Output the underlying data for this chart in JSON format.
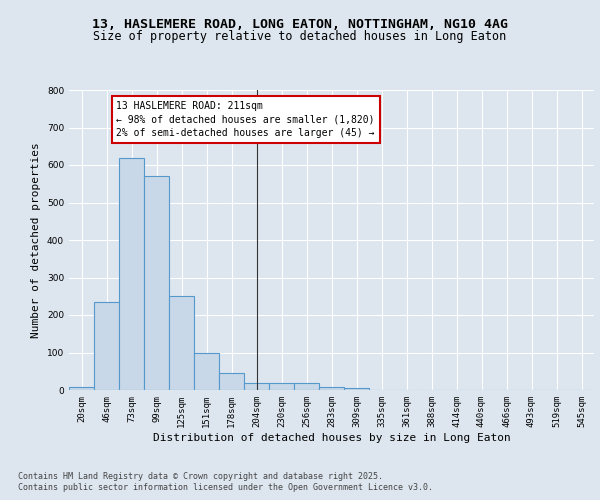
{
  "title_line1": "13, HASLEMERE ROAD, LONG EATON, NOTTINGHAM, NG10 4AG",
  "title_line2": "Size of property relative to detached houses in Long Eaton",
  "xlabel": "Distribution of detached houses by size in Long Eaton",
  "ylabel": "Number of detached properties",
  "bar_color": "#c8d8e8",
  "bar_edge_color": "#5599cc",
  "bar_edge_width": 0.8,
  "background_color": "#dde6ef",
  "axes_background": "#dde6ef",
  "grid_color": "#ffffff",
  "categories": [
    "20sqm",
    "46sqm",
    "73sqm",
    "99sqm",
    "125sqm",
    "151sqm",
    "178sqm",
    "204sqm",
    "230sqm",
    "256sqm",
    "283sqm",
    "309sqm",
    "335sqm",
    "361sqm",
    "388sqm",
    "414sqm",
    "440sqm",
    "466sqm",
    "493sqm",
    "519sqm",
    "545sqm"
  ],
  "bar_values": [
    8,
    235,
    620,
    570,
    250,
    98,
    45,
    20,
    20,
    18,
    8,
    5,
    0,
    0,
    0,
    0,
    0,
    0,
    0,
    0,
    0
  ],
  "vline_x": 7,
  "ylim": [
    0,
    800
  ],
  "yticks": [
    0,
    100,
    200,
    300,
    400,
    500,
    600,
    700,
    800
  ],
  "annotation_title": "13 HASLEMERE ROAD: 211sqm",
  "annotation_line1": "← 98% of detached houses are smaller (1,820)",
  "annotation_line2": "2% of semi-detached houses are larger (45) →",
  "annotation_box_color": "#ffffff",
  "annotation_border_color": "#cc0000",
  "footer_line1": "Contains HM Land Registry data © Crown copyright and database right 2025.",
  "footer_line2": "Contains public sector information licensed under the Open Government Licence v3.0.",
  "title_fontsize": 9.5,
  "subtitle_fontsize": 8.5,
  "axis_label_fontsize": 8,
  "tick_fontsize": 6.5,
  "annotation_fontsize": 7,
  "footer_fontsize": 6
}
